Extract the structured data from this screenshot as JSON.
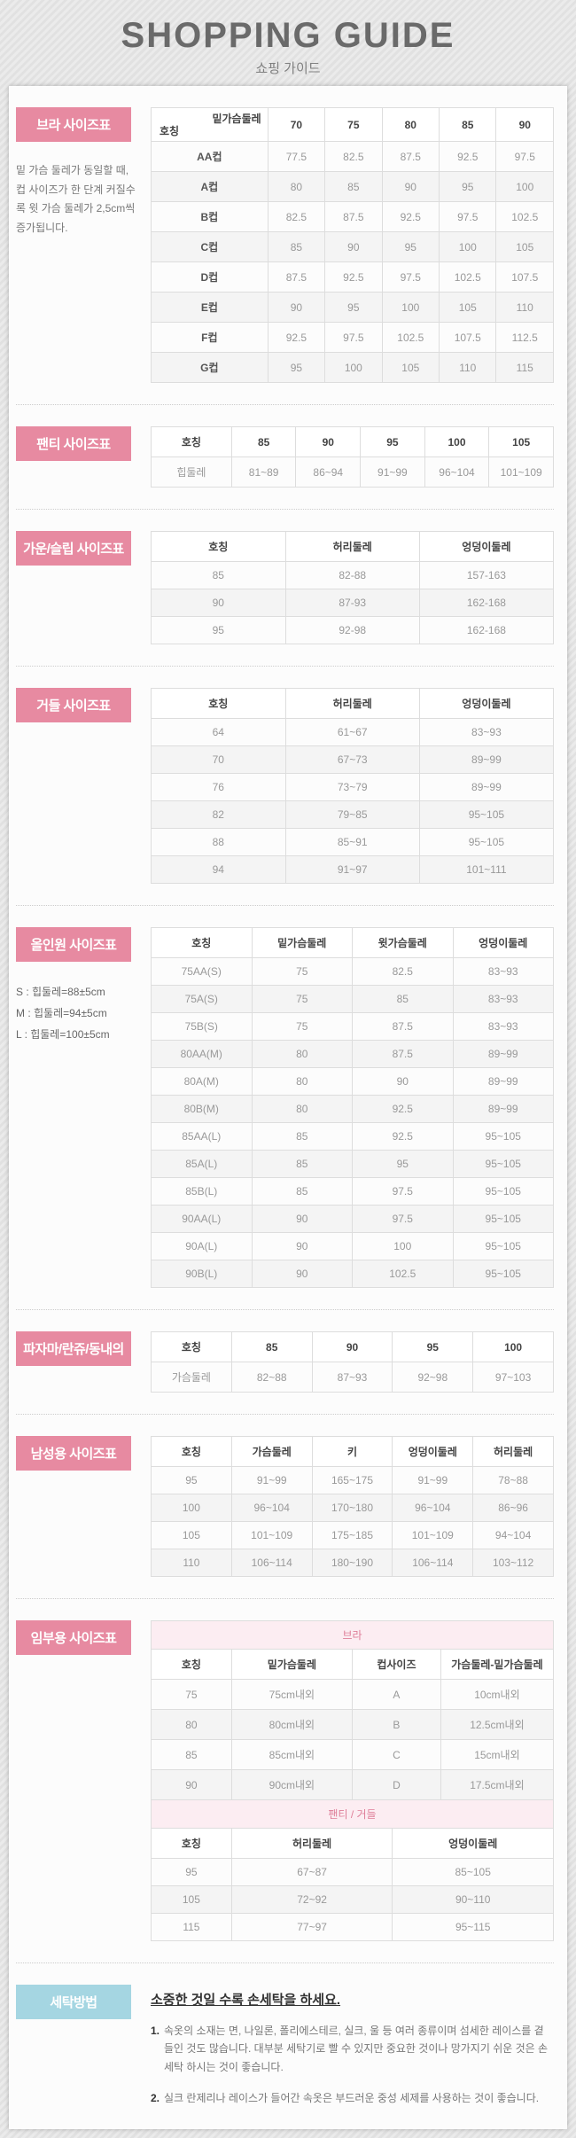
{
  "page": {
    "title": "SHOPPING GUIDE",
    "subtitle": "쇼핑 가이드"
  },
  "colors": {
    "accent_pink": "#e78aa1",
    "accent_blue": "#a5d6e2",
    "maternity_band_bg": "#fcedf2",
    "maternity_band_text": "#df7f99"
  },
  "sections": {
    "bra": {
      "label": "브라 사이즈표",
      "note": "밑 가슴 둘레가 동일할 때, 컵 사이즈가 한 단계 커질수록 윗 가슴 둘레가 2,5cm씩 증가됩니다.",
      "corner_top": "밑가슴둘레",
      "corner_bottom": "호칭",
      "headers": [
        "70",
        "75",
        "80",
        "85",
        "90"
      ],
      "rows": [
        [
          "AA컵",
          "77.5",
          "82.5",
          "87.5",
          "92.5",
          "97.5"
        ],
        [
          "A컵",
          "80",
          "85",
          "90",
          "95",
          "100"
        ],
        [
          "B컵",
          "82.5",
          "87.5",
          "92.5",
          "97.5",
          "102.5"
        ],
        [
          "C컵",
          "85",
          "90",
          "95",
          "100",
          "105"
        ],
        [
          "D컵",
          "87.5",
          "92.5",
          "97.5",
          "102.5",
          "107.5"
        ],
        [
          "E컵",
          "90",
          "95",
          "100",
          "105",
          "110"
        ],
        [
          "F컵",
          "92.5",
          "97.5",
          "102.5",
          "107.5",
          "112.5"
        ],
        [
          "G컵",
          "95",
          "100",
          "105",
          "110",
          "115"
        ]
      ]
    },
    "panty": {
      "label": "팬티 사이즈표",
      "headers": [
        "호칭",
        "85",
        "90",
        "95",
        "100",
        "105"
      ],
      "rows": [
        [
          "힙둘레",
          "81~89",
          "86~94",
          "91~99",
          "96~104",
          "101~109"
        ]
      ]
    },
    "gown": {
      "label": "가운/슬립 사이즈표",
      "headers": [
        "호칭",
        "허리둘레",
        "엉덩이둘레"
      ],
      "rows": [
        [
          "85",
          "82-88",
          "157-163"
        ],
        [
          "90",
          "87-93",
          "162-168"
        ],
        [
          "95",
          "92-98",
          "162-168"
        ]
      ]
    },
    "girdle": {
      "label": "거들 사이즈표",
      "headers": [
        "호칭",
        "허리둘레",
        "엉덩이둘레"
      ],
      "rows": [
        [
          "64",
          "61~67",
          "83~93"
        ],
        [
          "70",
          "67~73",
          "89~99"
        ],
        [
          "76",
          "73~79",
          "89~99"
        ],
        [
          "82",
          "79~85",
          "95~105"
        ],
        [
          "88",
          "85~91",
          "95~105"
        ],
        [
          "94",
          "91~97",
          "101~111"
        ]
      ]
    },
    "allinone": {
      "label": "올인원 사이즈표",
      "notes": [
        "S : 힙둘레=88±5cm",
        "M : 힙둘레=94±5cm",
        "L : 힙둘레=100±5cm"
      ],
      "headers": [
        "호칭",
        "밑가슴둘레",
        "윗가슴둘레",
        "엉덩이둘레"
      ],
      "rows": [
        [
          "75AA(S)",
          "75",
          "82.5",
          "83~93"
        ],
        [
          "75A(S)",
          "75",
          "85",
          "83~93"
        ],
        [
          "75B(S)",
          "75",
          "87.5",
          "83~93"
        ],
        [
          "80AA(M)",
          "80",
          "87.5",
          "89~99"
        ],
        [
          "80A(M)",
          "80",
          "90",
          "89~99"
        ],
        [
          "80B(M)",
          "80",
          "92.5",
          "89~99"
        ],
        [
          "85AA(L)",
          "85",
          "92.5",
          "95~105"
        ],
        [
          "85A(L)",
          "85",
          "95",
          "95~105"
        ],
        [
          "85B(L)",
          "85",
          "97.5",
          "95~105"
        ],
        [
          "90AA(L)",
          "90",
          "97.5",
          "95~105"
        ],
        [
          "90A(L)",
          "90",
          "100",
          "95~105"
        ],
        [
          "90B(L)",
          "90",
          "102.5",
          "95~105"
        ]
      ]
    },
    "pajama": {
      "label": "파자마/란쥬/동내의",
      "headers": [
        "호칭",
        "85",
        "90",
        "95",
        "100"
      ],
      "rows": [
        [
          "가슴둘레",
          "82~88",
          "87~93",
          "92~98",
          "97~103"
        ]
      ]
    },
    "mens": {
      "label": "남성용 사이즈표",
      "headers": [
        "호칭",
        "가슴둘레",
        "키",
        "엉덩이둘레",
        "허리둘레"
      ],
      "rows": [
        [
          "95",
          "91~99",
          "165~175",
          "91~99",
          "78~88"
        ],
        [
          "100",
          "96~104",
          "170~180",
          "96~104",
          "86~96"
        ],
        [
          "105",
          "101~109",
          "175~185",
          "101~109",
          "94~104"
        ],
        [
          "110",
          "106~114",
          "180~190",
          "106~114",
          "103~112"
        ]
      ]
    },
    "maternity": {
      "label": "임부용 사이즈표",
      "band1": "브라",
      "bra_headers": [
        "호칭",
        "밑가슴둘레",
        "컵사이즈",
        "가슴둘레-밑가슴둘레"
      ],
      "bra_rows": [
        [
          "75",
          "75cm내외",
          "A",
          "10cm내외"
        ],
        [
          "80",
          "80cm내외",
          "B",
          "12.5cm내외"
        ],
        [
          "85",
          "85cm내외",
          "C",
          "15cm내외"
        ],
        [
          "90",
          "90cm내외",
          "D",
          "17.5cm내외"
        ]
      ],
      "band2": "팬티 / 거들",
      "bottom_headers": [
        "호칭",
        "허리둘레",
        "엉덩이둘레"
      ],
      "bottom_rows": [
        [
          "95",
          "67~87",
          "85~105"
        ],
        [
          "105",
          "72~92",
          "90~110"
        ],
        [
          "115",
          "77~97",
          "95~115"
        ]
      ]
    },
    "washing": {
      "label": "세탁방법",
      "title": "소중한 것일 수록 손세탁을 하세요.",
      "items": [
        {
          "num": "1.",
          "text": "속옷의 소재는 면, 나일론, 폴리에스테르, 실크, 울 등 여러 종류이며 섬세한 레이스를 곁들인 것도 많습니다. 대부분 세탁기로 빨 수 있지만 중요한 것이나 망가지기 쉬운 것은 손세탁 하시는 것이 좋습니다."
        },
        {
          "num": "2.",
          "text": "실크 란제리나 레이스가 들어간 속옷은 부드러운 중성 세제를 사용하는 것이 좋습니다."
        }
      ]
    }
  }
}
